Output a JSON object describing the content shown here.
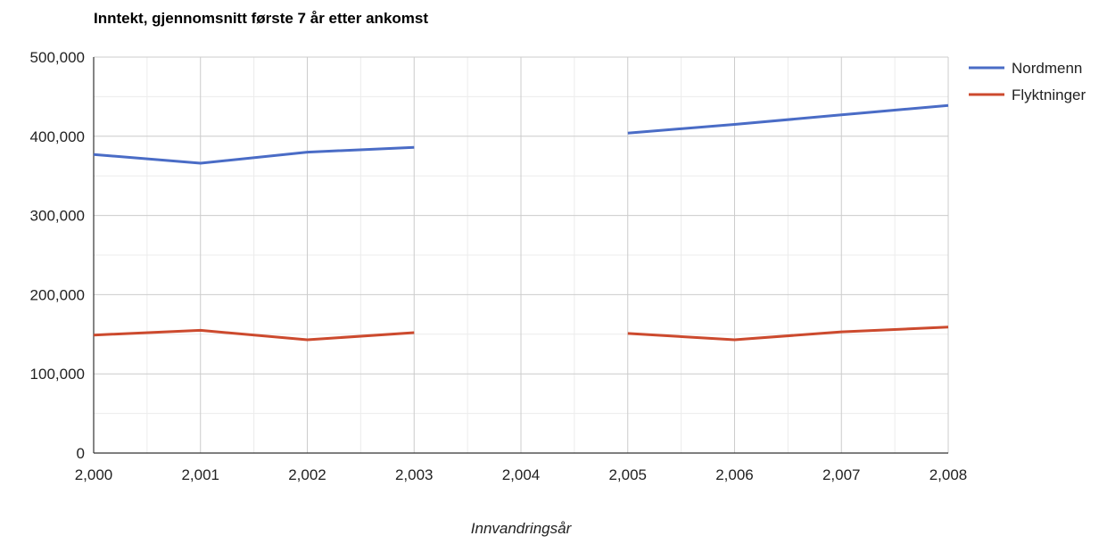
{
  "chart_data": {
    "type": "line",
    "title": "Inntekt, gjennomsnitt første 7 år etter ankomst",
    "xlabel": "Innvandringsår",
    "ylabel": "",
    "x": [
      2000,
      2001,
      2002,
      2003,
      2004,
      2005,
      2006,
      2007,
      2008
    ],
    "x_tick_labels": [
      "2,000",
      "2,001",
      "2,002",
      "2,003",
      "2,004",
      "2,005",
      "2,006",
      "2,007",
      "2,008"
    ],
    "xlim": [
      2000,
      2008
    ],
    "ylim": [
      0,
      500000
    ],
    "y_ticks": [
      0,
      100000,
      200000,
      300000,
      400000,
      500000
    ],
    "y_tick_labels": [
      "0",
      "100,000",
      "200,000",
      "300,000",
      "400,000",
      "500,000"
    ],
    "grid": true,
    "legend_position": "right",
    "series": [
      {
        "name": "Nordmenn",
        "color": "#4a6cc6",
        "values": [
          377000,
          366000,
          380000,
          386000,
          null,
          404000,
          415000,
          427000,
          439000
        ]
      },
      {
        "name": "Flyktninger",
        "color": "#cc4a2e",
        "values": [
          149000,
          155000,
          143000,
          152000,
          null,
          151000,
          143000,
          153000,
          159000
        ]
      }
    ]
  }
}
